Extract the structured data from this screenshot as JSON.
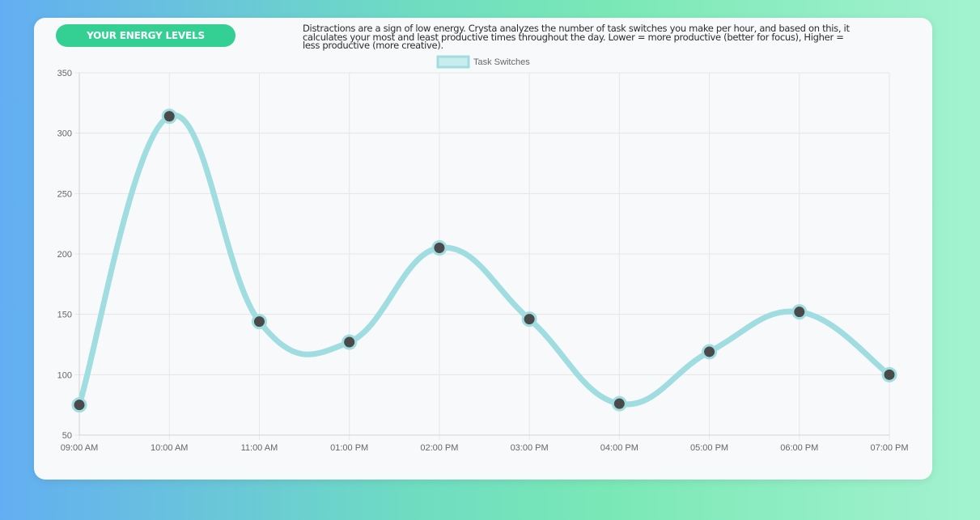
{
  "header": {
    "badge_label": "YOUR ENERGY LEVELS",
    "description": "Distractions are a sign of low energy. Crysta analyzes the number of task switches you make per hour, and based on this, it calculates your most and least productive times throughout the day. Lower = more productive (better for focus), Higher = less productive (more creative)."
  },
  "colors": {
    "badge": "#34cf93",
    "line": "#9fdde0",
    "point_fill": "#4a4a4a",
    "grid": "#e6e6e6"
  },
  "chart_data": {
    "type": "line",
    "title": "",
    "xlabel": "",
    "ylabel": "",
    "categories": [
      "09:00 AM",
      "10:00 AM",
      "11:00 AM",
      "01:00 PM",
      "02:00 PM",
      "03:00 PM",
      "04:00 PM",
      "05:00 PM",
      "06:00 PM",
      "07:00 PM"
    ],
    "series": [
      {
        "name": "Task Switches",
        "values": [
          75,
          314,
          144,
          127,
          205,
          146,
          76,
          119,
          152,
          100
        ]
      }
    ],
    "ylim": [
      50,
      350
    ],
    "yticks": [
      50,
      100,
      150,
      200,
      250,
      300,
      350
    ],
    "grid": true,
    "legend_position": "top-center",
    "smooth": true
  }
}
